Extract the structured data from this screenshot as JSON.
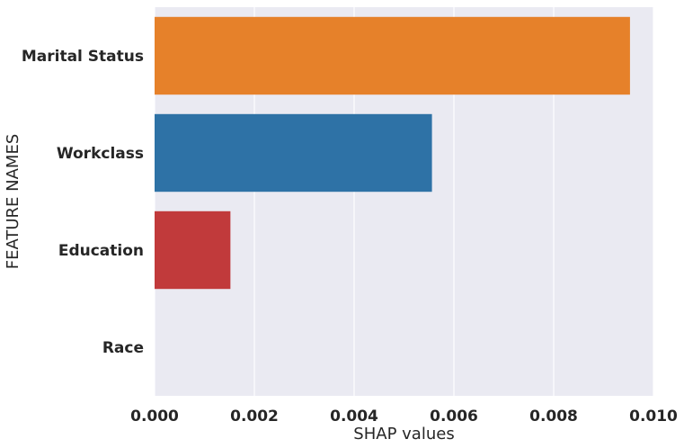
{
  "chart_data": {
    "type": "bar",
    "orientation": "horizontal",
    "categories": [
      "Marital Status",
      "Workclass",
      "Education",
      "Race"
    ],
    "values": [
      0.00953,
      0.00556,
      0.00152,
      0.0
    ],
    "colors": [
      "#e6812a",
      "#2e72a6",
      "#c13a3b",
      "#3a9a3a"
    ],
    "xlabel": "SHAP values",
    "ylabel": "FEATURE NAMES",
    "xlim": [
      0.0,
      0.01
    ],
    "xticks": [
      "0.000",
      "0.002",
      "0.004",
      "0.006",
      "0.008",
      "0.010"
    ],
    "xtick_values": [
      0.0,
      0.002,
      0.004,
      0.006,
      0.008,
      0.01
    ],
    "grid": true,
    "background": "#eaeaf2",
    "grid_color": "#ffffff"
  }
}
